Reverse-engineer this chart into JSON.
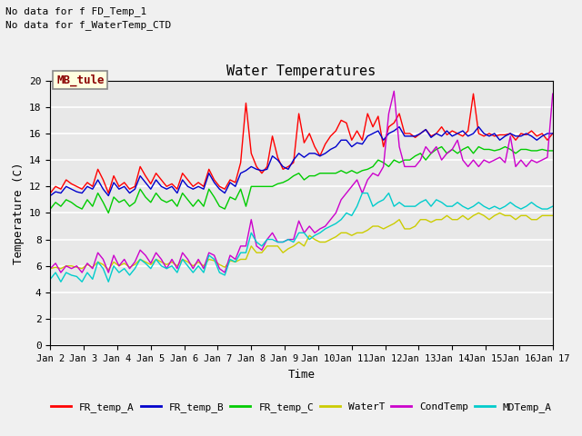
{
  "title": "Water Temperatures",
  "xlabel": "Time",
  "ylabel": "Temperature (C)",
  "ylim": [
    0,
    20
  ],
  "yticks": [
    0,
    2,
    4,
    6,
    8,
    10,
    12,
    14,
    16,
    18,
    20
  ],
  "xlim": [
    0,
    15
  ],
  "xtick_labels": [
    "Jan 2",
    "Jan 3",
    "Jan 4",
    "Jan 5",
    "Jan 6",
    "Jan 7",
    "Jan 8",
    "Jan 9",
    "Jan 10",
    "Jan 11",
    "Jan 12",
    "Jan 13",
    "Jan 14",
    "Jan 15",
    "Jan 16",
    "Jan 17"
  ],
  "note1": "No data for f FD_Temp_1",
  "note2": "No data for f_WaterTemp_CTD",
  "legend_label": "MB_tule",
  "background_color": "#e8e8e8",
  "fig_background": "#f0f0f0",
  "series_colors": {
    "FR_temp_A": "#ff0000",
    "FR_temp_B": "#0000cc",
    "FR_temp_C": "#00cc00",
    "WaterT": "#cccc00",
    "CondTemp": "#cc00cc",
    "MDTemp_A": "#00cccc"
  },
  "FR_temp_A": [
    11.5,
    12.0,
    11.8,
    12.5,
    12.2,
    12.0,
    11.8,
    12.3,
    12.0,
    13.3,
    12.5,
    11.5,
    12.8,
    12.0,
    12.3,
    11.8,
    12.0,
    13.5,
    12.8,
    12.2,
    13.0,
    12.5,
    12.0,
    12.2,
    11.8,
    13.0,
    12.5,
    12.0,
    12.3,
    12.0,
    13.3,
    12.5,
    12.0,
    11.8,
    12.5,
    12.3,
    13.8,
    18.3,
    14.5,
    13.5,
    13.0,
    13.5,
    15.8,
    14.2,
    13.3,
    13.5,
    13.8,
    17.5,
    15.3,
    16.0,
    15.0,
    14.3,
    15.2,
    15.8,
    16.2,
    17.0,
    16.8,
    15.5,
    16.2,
    15.5,
    17.5,
    16.5,
    17.3,
    15.0,
    16.5,
    16.8,
    17.5,
    16.0,
    16.0,
    15.7,
    16.0,
    16.3,
    15.8,
    16.0,
    16.5,
    15.9,
    16.2,
    16.0,
    15.8,
    16.2,
    19.0,
    16.0,
    15.8,
    16.0,
    15.8,
    15.9,
    15.9,
    16.0,
    15.5,
    16.0,
    15.9,
    16.2,
    15.8,
    16.0,
    15.5,
    16.0
  ],
  "FR_temp_B": [
    11.3,
    11.6,
    11.5,
    12.0,
    11.8,
    11.6,
    11.5,
    12.0,
    11.8,
    12.5,
    11.8,
    11.3,
    12.3,
    11.8,
    12.0,
    11.5,
    11.8,
    12.8,
    12.3,
    11.8,
    12.5,
    12.0,
    11.8,
    12.0,
    11.5,
    12.5,
    12.0,
    11.8,
    12.0,
    11.8,
    13.0,
    12.3,
    11.8,
    11.5,
    12.3,
    12.0,
    13.0,
    13.2,
    13.5,
    13.3,
    13.2,
    13.3,
    14.3,
    14.0,
    13.5,
    13.3,
    14.0,
    14.5,
    14.2,
    14.5,
    14.5,
    14.3,
    14.5,
    14.8,
    15.0,
    15.5,
    15.5,
    15.0,
    15.3,
    15.2,
    15.8,
    16.0,
    16.2,
    15.5,
    16.0,
    16.2,
    16.5,
    15.8,
    15.8,
    15.8,
    16.0,
    16.3,
    15.7,
    16.0,
    15.8,
    16.2,
    15.8,
    16.0,
    16.2,
    15.8,
    16.0,
    16.5,
    16.0,
    15.8,
    16.0,
    15.5,
    15.8,
    16.0,
    15.8,
    15.8,
    16.0,
    15.8,
    15.5,
    15.8,
    16.0,
    16.0
  ],
  "FR_temp_C": [
    10.3,
    10.8,
    10.5,
    11.0,
    10.8,
    10.5,
    10.3,
    11.0,
    10.5,
    11.5,
    10.8,
    10.0,
    11.2,
    10.8,
    11.0,
    10.5,
    10.8,
    11.8,
    11.2,
    10.8,
    11.5,
    11.0,
    10.8,
    11.0,
    10.5,
    11.5,
    11.0,
    10.5,
    11.0,
    10.5,
    11.8,
    11.2,
    10.5,
    10.3,
    11.2,
    11.0,
    11.8,
    10.5,
    12.0,
    12.0,
    12.0,
    12.0,
    12.0,
    12.2,
    12.3,
    12.5,
    12.8,
    13.0,
    12.5,
    12.8,
    12.8,
    13.0,
    13.0,
    13.0,
    13.0,
    13.2,
    13.0,
    13.2,
    13.0,
    13.2,
    13.3,
    13.5,
    14.0,
    13.8,
    13.5,
    14.0,
    13.8,
    14.0,
    14.0,
    14.3,
    14.5,
    14.0,
    14.5,
    14.8,
    15.0,
    14.5,
    14.8,
    14.5,
    14.8,
    15.0,
    14.5,
    15.0,
    14.8,
    14.8,
    14.7,
    14.8,
    15.0,
    14.8,
    14.5,
    14.8,
    14.8,
    14.7,
    14.7,
    14.8,
    14.7,
    14.7
  ],
  "WaterT": [
    5.8,
    5.9,
    5.8,
    6.0,
    6.0,
    5.9,
    5.8,
    6.1,
    5.9,
    6.3,
    6.1,
    5.7,
    6.3,
    6.0,
    6.2,
    5.9,
    6.1,
    6.5,
    6.3,
    6.1,
    6.5,
    6.3,
    6.1,
    6.3,
    6.0,
    6.5,
    6.3,
    6.0,
    6.3,
    6.0,
    6.5,
    6.4,
    6.1,
    5.9,
    6.4,
    6.3,
    6.5,
    6.5,
    7.5,
    7.0,
    7.0,
    7.5,
    7.5,
    7.5,
    7.0,
    7.3,
    7.5,
    7.8,
    7.5,
    8.3,
    8.0,
    7.8,
    7.8,
    8.0,
    8.2,
    8.5,
    8.5,
    8.3,
    8.5,
    8.5,
    8.7,
    9.0,
    9.0,
    8.8,
    9.0,
    9.2,
    9.5,
    8.8,
    8.8,
    9.0,
    9.5,
    9.5,
    9.3,
    9.5,
    9.5,
    9.8,
    9.5,
    9.5,
    9.8,
    9.5,
    9.8,
    10.0,
    9.8,
    9.5,
    9.8,
    10.0,
    9.8,
    9.8,
    9.5,
    9.8,
    9.8,
    9.5,
    9.5,
    9.8,
    9.8,
    9.8
  ],
  "CondTemp": [
    5.8,
    6.2,
    5.5,
    6.0,
    5.8,
    6.0,
    5.5,
    6.2,
    5.8,
    7.0,
    6.5,
    5.5,
    6.8,
    6.0,
    6.5,
    5.8,
    6.3,
    7.2,
    6.8,
    6.2,
    7.0,
    6.5,
    5.8,
    6.5,
    5.8,
    7.0,
    6.5,
    5.8,
    6.5,
    5.8,
    7.0,
    6.8,
    5.8,
    5.5,
    6.8,
    6.5,
    7.5,
    7.5,
    9.5,
    7.5,
    7.2,
    8.0,
    8.5,
    7.8,
    7.8,
    8.0,
    8.0,
    9.4,
    8.5,
    9.0,
    8.5,
    8.8,
    9.0,
    9.5,
    10.0,
    11.0,
    11.5,
    12.0,
    12.5,
    11.5,
    12.5,
    13.0,
    12.8,
    13.5,
    17.5,
    19.2,
    15.0,
    13.5,
    13.5,
    13.5,
    14.0,
    15.0,
    14.5,
    15.0,
    14.0,
    14.5,
    14.8,
    15.5,
    14.0,
    13.5,
    14.0,
    13.5,
    14.0,
    13.8,
    14.0,
    14.2,
    13.8,
    15.8,
    13.5,
    14.0,
    13.5,
    14.0,
    13.8,
    14.0,
    14.2,
    19.0
  ],
  "MDTemp_A": [
    5.0,
    5.5,
    4.8,
    5.5,
    5.3,
    5.2,
    4.8,
    5.5,
    5.0,
    6.3,
    5.8,
    4.8,
    6.0,
    5.5,
    5.8,
    5.3,
    5.8,
    6.5,
    6.2,
    5.8,
    6.5,
    6.0,
    5.8,
    6.0,
    5.5,
    6.5,
    6.0,
    5.5,
    6.0,
    5.5,
    6.8,
    6.5,
    5.5,
    5.3,
    6.5,
    6.3,
    7.0,
    7.0,
    8.5,
    7.8,
    7.5,
    8.0,
    8.0,
    7.8,
    7.8,
    8.0,
    7.8,
    8.5,
    8.5,
    8.0,
    8.3,
    8.5,
    8.8,
    9.0,
    9.2,
    9.5,
    10.0,
    9.8,
    10.5,
    11.5,
    11.5,
    10.5,
    10.8,
    11.0,
    11.5,
    10.5,
    10.8,
    10.5,
    10.5,
    10.5,
    10.8,
    11.0,
    10.5,
    11.0,
    10.8,
    10.5,
    10.5,
    10.8,
    10.5,
    10.3,
    10.5,
    10.8,
    10.5,
    10.3,
    10.5,
    10.3,
    10.5,
    10.8,
    10.5,
    10.3,
    10.5,
    10.8,
    10.5,
    10.3,
    10.3,
    10.5
  ]
}
